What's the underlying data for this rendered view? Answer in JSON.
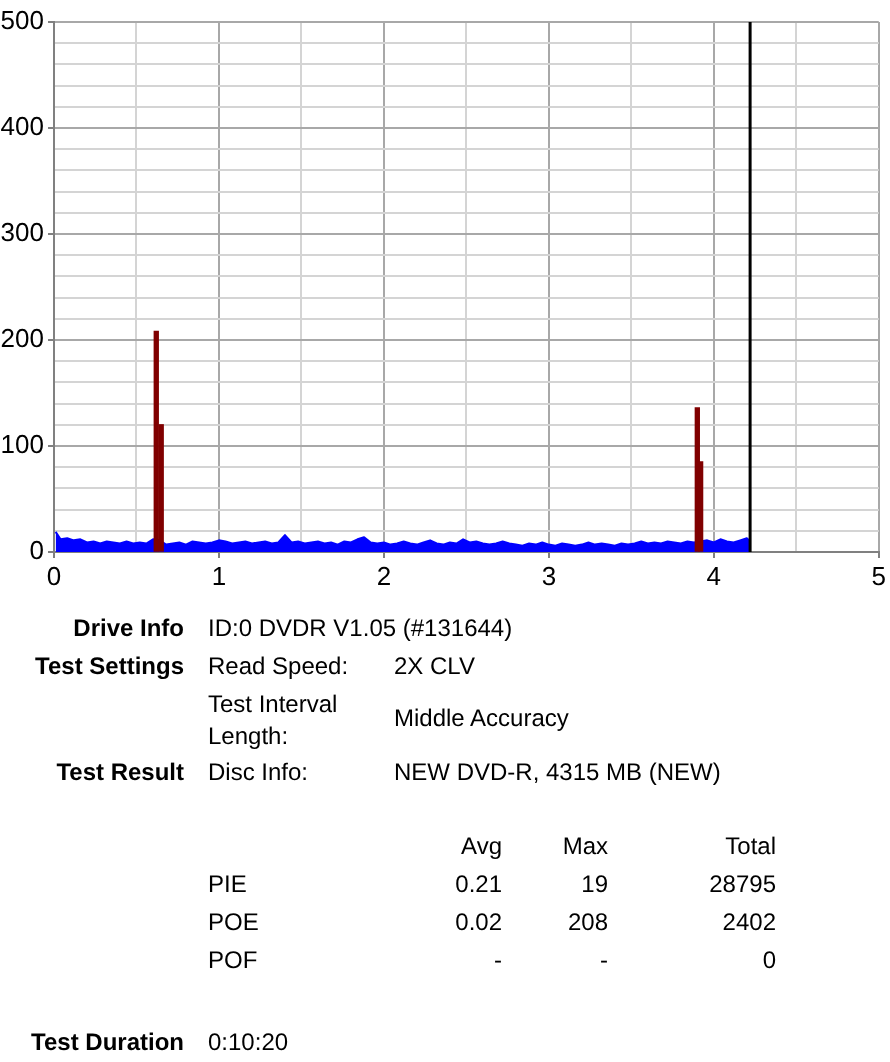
{
  "chart_data": [
    {
      "type": "area",
      "xlim": [
        0,
        5
      ],
      "xticks": [
        0,
        {
          "value": 0.5,
          "label": null
        },
        1,
        {
          "value": 1.5,
          "label": null
        },
        2,
        {
          "value": 2.5,
          "label": null
        },
        3,
        {
          "value": 3.5,
          "label": null
        },
        4,
        {
          "value": 4.5,
          "label": null
        },
        5
      ],
      "ylim": [
        0,
        500
      ],
      "yticks": [
        0,
        {
          "value": 20,
          "label": null
        },
        {
          "value": 40,
          "label": null
        },
        {
          "value": 60,
          "label": null
        },
        {
          "value": 80,
          "label": null
        },
        100,
        {
          "value": 120,
          "label": null
        },
        {
          "value": 140,
          "label": null
        },
        {
          "value": 160,
          "label": null
        },
        {
          "value": 180,
          "label": null
        },
        200,
        {
          "value": 220,
          "label": null
        },
        {
          "value": 240,
          "label": null
        },
        {
          "value": 260,
          "label": null
        },
        {
          "value": 280,
          "label": null
        },
        300,
        {
          "value": 320,
          "label": null
        },
        {
          "value": 340,
          "label": null
        },
        {
          "value": 360,
          "label": null
        },
        {
          "value": 380,
          "label": null
        },
        400,
        {
          "value": 420,
          "label": null
        },
        {
          "value": 440,
          "label": null
        },
        {
          "value": 460,
          "label": null
        },
        {
          "value": 480,
          "label": null
        },
        500
      ],
      "grid": true,
      "marker": "none",
      "series": [
        {
          "type": "area",
          "color": "#0000ff",
          "x": [
            0.01,
            0.04,
            0.08,
            0.12,
            0.16,
            0.2,
            0.24,
            0.28,
            0.32,
            0.36,
            0.4,
            0.44,
            0.48,
            0.52,
            0.56,
            0.6,
            0.64,
            0.68,
            0.72,
            0.76,
            0.8,
            0.84,
            0.88,
            0.92,
            0.96,
            1,
            1.04,
            1.08,
            1.12,
            1.16,
            1.2,
            1.24,
            1.28,
            1.32,
            1.36,
            1.4,
            1.44,
            1.48,
            1.52,
            1.56,
            1.6,
            1.64,
            1.68,
            1.72,
            1.76,
            1.8,
            1.84,
            1.88,
            1.92,
            1.96,
            2,
            2.04,
            2.08,
            2.12,
            2.16,
            2.2,
            2.24,
            2.28,
            2.32,
            2.36,
            2.4,
            2.44,
            2.48,
            2.52,
            2.56,
            2.6,
            2.64,
            2.68,
            2.72,
            2.76,
            2.8,
            2.84,
            2.88,
            2.92,
            2.96,
            3,
            3.04,
            3.08,
            3.12,
            3.16,
            3.2,
            3.24,
            3.28,
            3.32,
            3.36,
            3.4,
            3.44,
            3.48,
            3.52,
            3.56,
            3.6,
            3.64,
            3.68,
            3.72,
            3.76,
            3.8,
            3.84,
            3.88,
            3.92,
            3.96,
            4,
            4.04,
            4.08,
            4.12,
            4.16,
            4.2,
            4.22
          ],
          "values": [
            19,
            12,
            13,
            11,
            12,
            9,
            10,
            8,
            10,
            9,
            8,
            10,
            8,
            9,
            8,
            12,
            11,
            7,
            8,
            9,
            7,
            10,
            9,
            8,
            9,
            11,
            10,
            8,
            9,
            10,
            8,
            9,
            10,
            8,
            9,
            16,
            9,
            10,
            8,
            9,
            10,
            8,
            9,
            7,
            10,
            9,
            12,
            14,
            9,
            8,
            9,
            7,
            8,
            10,
            8,
            7,
            9,
            11,
            8,
            7,
            9,
            8,
            12,
            9,
            10,
            8,
            7,
            8,
            10,
            8,
            7,
            6,
            8,
            7,
            9,
            7,
            6,
            8,
            7,
            6,
            7,
            9,
            7,
            8,
            7,
            6,
            8,
            7,
            8,
            10,
            8,
            9,
            8,
            10,
            9,
            8,
            10,
            9,
            10,
            11,
            9,
            12,
            10,
            9,
            11,
            13,
            10
          ]
        },
        {
          "type": "bar",
          "color": "#800000",
          "x": [
            0.62,
            0.65,
            3.9,
            3.92
          ],
          "values": [
            208,
            120,
            136,
            85
          ]
        }
      ],
      "ref_lines": [
        {
          "axis": "x",
          "value": 4.22,
          "color": "#000000"
        }
      ]
    },
    {
      "type": "other",
      "annotations": [
        "Drive Info",
        "ID:0 DVDR V1.05 (#131644)",
        "Test Settings",
        "Read Speed:",
        "2X CLV",
        "Test Interval Length:",
        "Middle Accuracy",
        "Test Result",
        "Disc Info:",
        "NEW DVD-R, 4315 MB (NEW)",
        "Avg",
        "Max",
        "Total",
        "PIE",
        "0.21",
        "19",
        "28795",
        "POE",
        "0.02",
        "208",
        "2402",
        "POF",
        "-",
        "-",
        "0",
        "Test Duration",
        "0:10:20"
      ]
    }
  ]
}
